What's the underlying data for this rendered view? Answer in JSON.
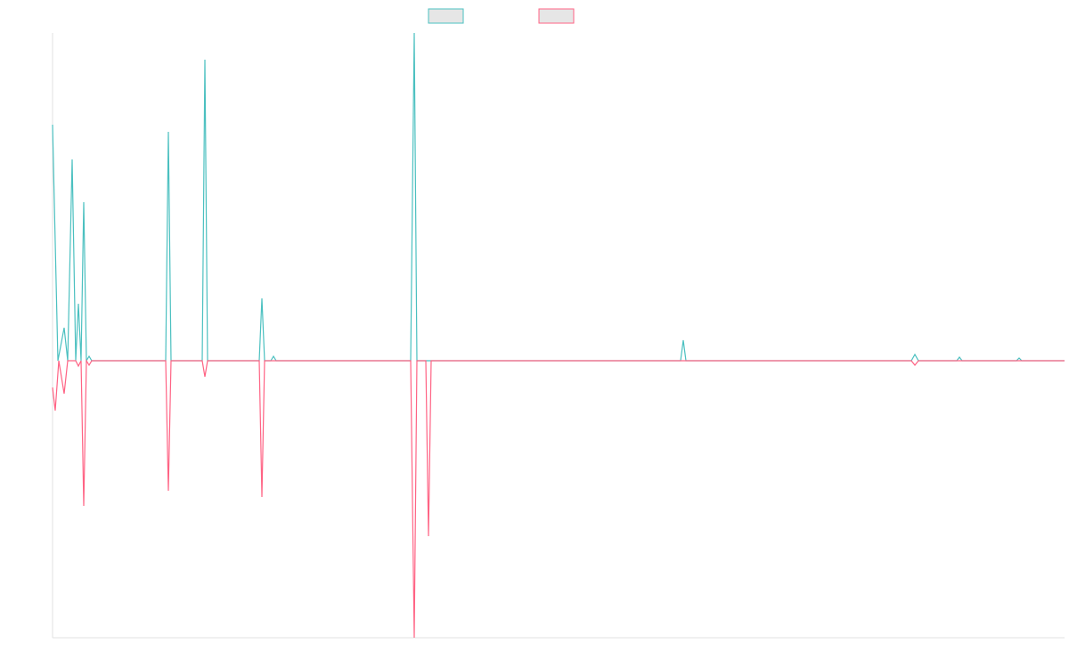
{
  "chart_data": {
    "type": "line",
    "xlim": [
      0,
      1136
    ],
    "ylim": [
      -311,
      368
    ],
    "series": [
      {
        "color": "#4bc0c0",
        "x": [
          0,
          6,
          13,
          17,
          22,
          26,
          29,
          32,
          35,
          38,
          41,
          44,
          127,
          130,
          133,
          168,
          171,
          174,
          232,
          235,
          238,
          245,
          248,
          251,
          402,
          406,
          409,
          705,
          708,
          711,
          964,
          968,
          972,
          1015,
          1018,
          1021,
          1082,
          1085,
          1088,
          1136
        ],
        "values": [
          265,
          0,
          37,
          0,
          226,
          0,
          64,
          0,
          178,
          0,
          5,
          0,
          0,
          257,
          0,
          0,
          338,
          0,
          0,
          70,
          0,
          0,
          5,
          0,
          0,
          368,
          0,
          0,
          23,
          0,
          0,
          7,
          0,
          0,
          4,
          0,
          0,
          3,
          0,
          0
        ]
      },
      {
        "color": "#ff6384",
        "x": [
          0,
          3,
          7,
          13,
          17,
          26,
          29,
          32,
          35,
          38,
          41,
          44,
          127,
          130,
          133,
          168,
          171,
          174,
          232,
          235,
          238,
          402,
          406,
          409,
          419,
          422,
          425,
          964,
          968,
          972,
          1136
        ],
        "values": [
          -30,
          -56,
          0,
          -37,
          0,
          0,
          -6,
          0,
          -163,
          0,
          -5,
          0,
          0,
          -146,
          0,
          0,
          -18,
          0,
          0,
          -153,
          0,
          0,
          -311,
          0,
          0,
          -197,
          0,
          0,
          -5,
          0,
          0
        ]
      }
    ]
  }
}
